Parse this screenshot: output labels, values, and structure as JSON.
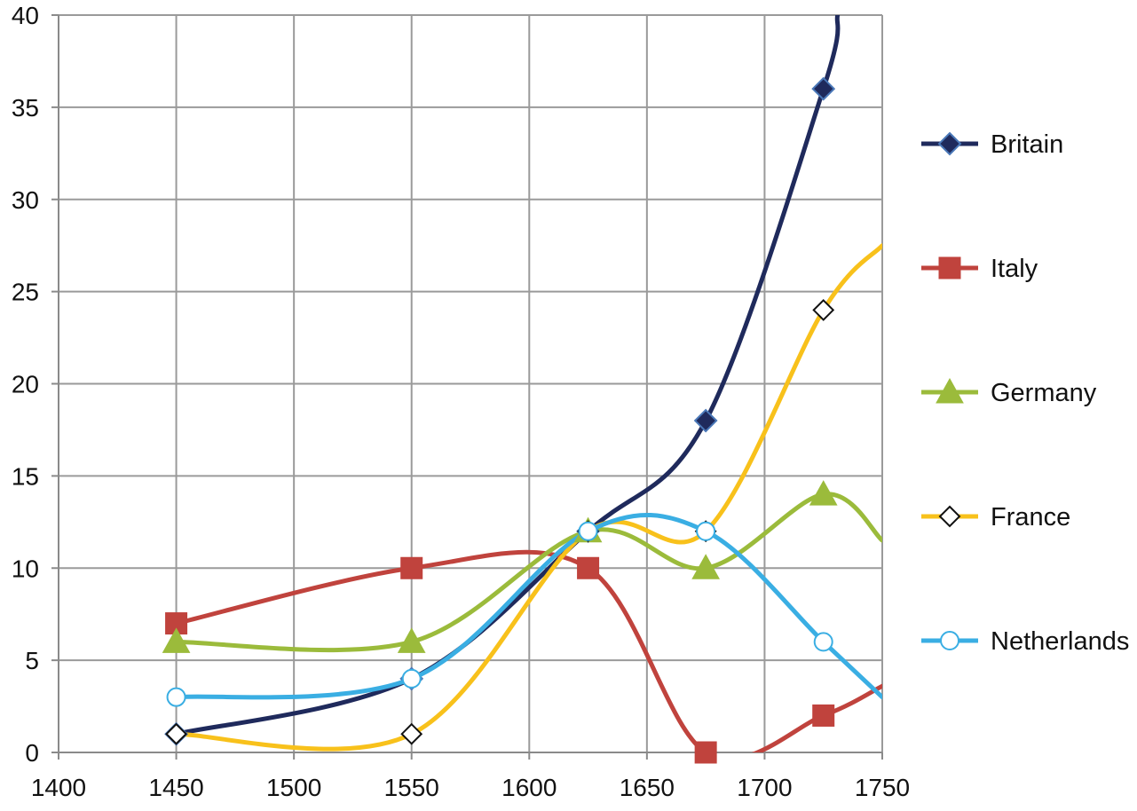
{
  "chart_data": {
    "type": "line",
    "x_ticks": [
      "1400",
      "1450",
      "1500",
      "1550",
      "1600",
      "1650",
      "1700",
      "1750"
    ],
    "y_ticks": [
      "0",
      "5",
      "10",
      "15",
      "20",
      "25",
      "30",
      "35",
      "40"
    ],
    "xlim": [
      1400,
      1750
    ],
    "ylim": [
      0,
      40
    ],
    "grid": true,
    "legend": "right",
    "series": [
      {
        "name": "Britain",
        "color": "#1f2a5c",
        "marker": "diamond-filled",
        "points": [
          [
            1450,
            1
          ],
          [
            1550,
            4
          ],
          [
            1625,
            12
          ],
          [
            1675,
            18
          ],
          [
            1725,
            36
          ]
        ],
        "line_extends_to": [
          1731,
          40
        ]
      },
      {
        "name": "Italy",
        "color": "#c0433d",
        "marker": "square",
        "points": [
          [
            1450,
            7
          ],
          [
            1550,
            10
          ],
          [
            1625,
            10
          ],
          [
            1675,
            0
          ],
          [
            1725,
            2
          ]
        ],
        "line_extends_to": [
          1750,
          3.6
        ]
      },
      {
        "name": "Germany",
        "color": "#9bbb3b",
        "marker": "triangle",
        "points": [
          [
            1450,
            6
          ],
          [
            1550,
            6
          ],
          [
            1625,
            12
          ],
          [
            1675,
            10
          ],
          [
            1725,
            14
          ]
        ],
        "line_extends_to": [
          1750,
          11.5
        ]
      },
      {
        "name": "France",
        "color": "#f8c11b",
        "marker": "diamond-open",
        "points": [
          [
            1450,
            1
          ],
          [
            1550,
            1
          ],
          [
            1625,
            12
          ],
          [
            1675,
            12
          ],
          [
            1725,
            24
          ]
        ],
        "line_extends_to": [
          1750,
          27.5
        ]
      },
      {
        "name": "Netherlands",
        "color": "#3aaee3",
        "marker": "circle-open",
        "points": [
          [
            1450,
            3
          ],
          [
            1550,
            4
          ],
          [
            1625,
            12
          ],
          [
            1675,
            12
          ],
          [
            1725,
            6
          ]
        ],
        "line_extends_to": [
          1750,
          3
        ]
      }
    ]
  }
}
